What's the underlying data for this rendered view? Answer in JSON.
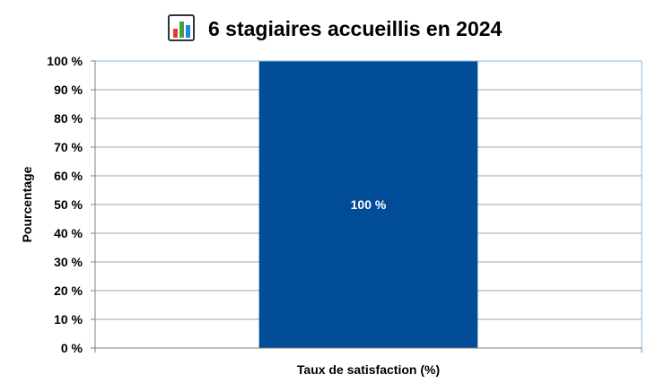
{
  "chart_data": {
    "type": "bar",
    "title": "6 stagiaires accueillis en 2024",
    "title_icon": "bar-chart-icon",
    "categories": [
      "Taux de satisfaction (%)"
    ],
    "values": [
      100
    ],
    "value_labels": [
      "100 %"
    ],
    "ylabel": "Pourcentage",
    "xlabel": "",
    "ylim": [
      0,
      100
    ],
    "yticks": [
      "0 %",
      "10 %",
      "20 %",
      "30 %",
      "40 %",
      "50 %",
      "60 %",
      "70 %",
      "80 %",
      "90 %",
      "100 %"
    ],
    "grid": true,
    "legend": "none",
    "colors": {
      "bar": "#004C97",
      "grid": "#A6A6A6",
      "axis": "#7F7F7F",
      "plot_border": "#8DB4E2",
      "text": "#000000",
      "data_label": "#FFFFFF"
    }
  }
}
